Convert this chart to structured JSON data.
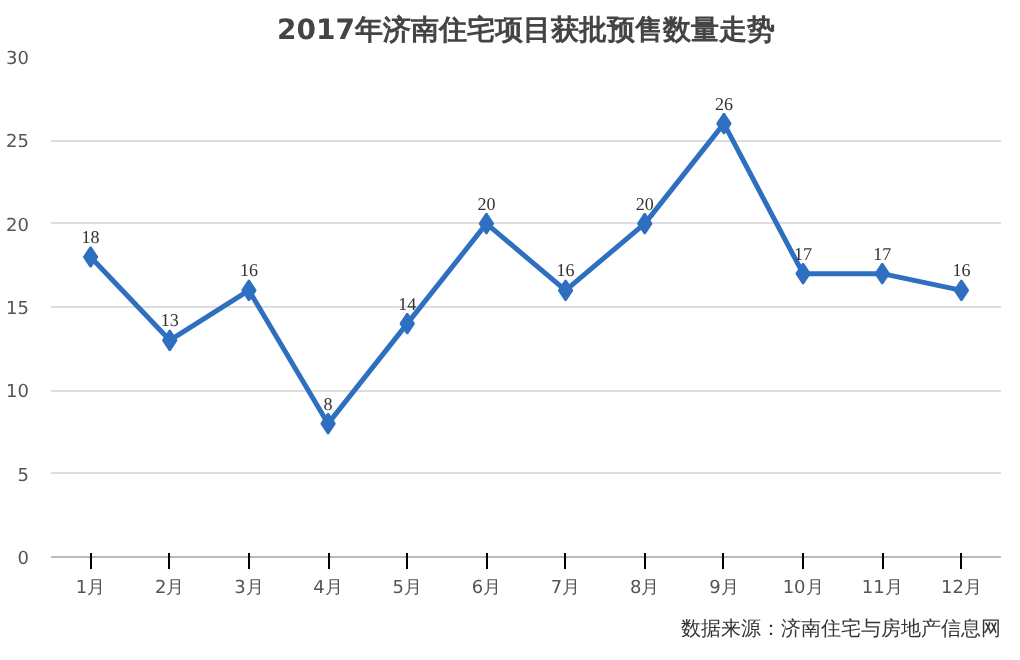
{
  "chart_data": {
    "type": "line",
    "title": "2017年济南住宅项目获批预售数量走势",
    "categories": [
      "1月",
      "2月",
      "3月",
      "4月",
      "5月",
      "6月",
      "7月",
      "8月",
      "9月",
      "10月",
      "11月",
      "12月"
    ],
    "series": [
      {
        "color": "#2e6fc0",
        "values": [
          18,
          13,
          16,
          8,
          14,
          20,
          16,
          20,
          26,
          17,
          17,
          16
        ]
      }
    ],
    "ylim": [
      0,
      30
    ],
    "yticks": [
      0,
      5,
      10,
      15,
      20,
      25,
      30
    ],
    "grid": "y",
    "marker": "diamond",
    "line_style": "solid",
    "data_labels": true,
    "annotations": [
      "数据来源：济南住宅与房地产信息网"
    ]
  }
}
